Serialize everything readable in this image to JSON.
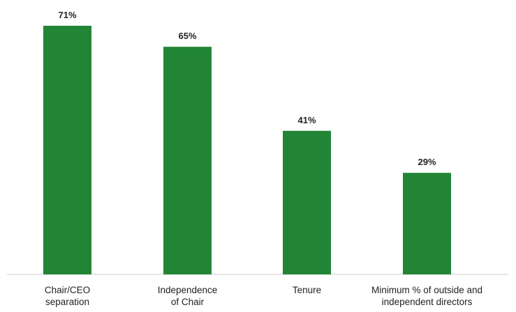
{
  "chart_data": {
    "type": "bar",
    "categories": [
      [
        "Chair/CEO",
        "separation"
      ],
      [
        "Independence",
        "of Chair"
      ],
      [
        "Tenure"
      ],
      [
        "Minimum % of outside and",
        "independent directors"
      ]
    ],
    "values": [
      71,
      65,
      41,
      29
    ],
    "value_labels": [
      "71%",
      "65%",
      "41%",
      "29%"
    ],
    "unit": "%",
    "ylim": [
      0,
      71
    ],
    "grid": false,
    "legend": "none",
    "title": "",
    "xlabel": "",
    "ylabel": "",
    "colors": {
      "bar": "#228536",
      "axis": "#cccccc",
      "text": "#222222"
    }
  }
}
